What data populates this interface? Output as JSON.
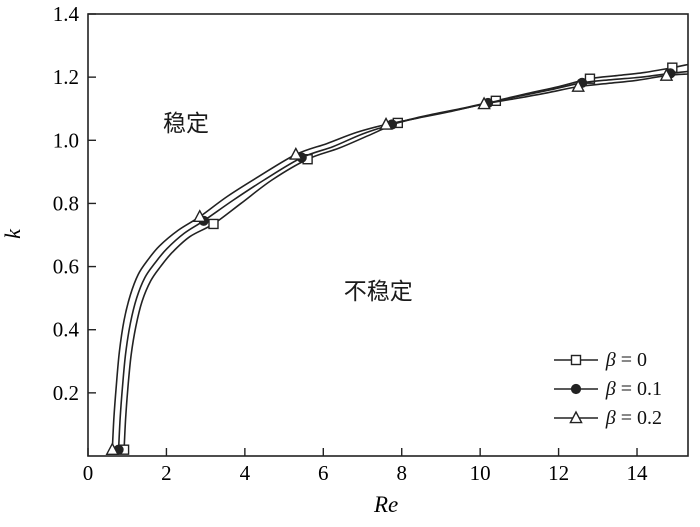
{
  "figure": {
    "background": "#ffffff",
    "line_color": "#222222",
    "text_color": "#000000"
  },
  "chart_data": {
    "type": "line",
    "title": "",
    "xlabel": "Re",
    "ylabel": "k",
    "xlim": [
      0,
      15.3
    ],
    "ylim": [
      0,
      1.4
    ],
    "xticks": [
      0,
      2,
      4,
      6,
      8,
      10,
      12,
      14
    ],
    "yticks": [
      0.2,
      0.4,
      0.6,
      0.8,
      1.0,
      1.2,
      1.4
    ],
    "grid": false,
    "legend_position": "lower right",
    "annotations": [
      {
        "text": "稳定",
        "x": 2.5,
        "y": 1.06
      },
      {
        "text": "不稳定",
        "x": 7.4,
        "y": 0.53
      }
    ],
    "series": [
      {
        "name": "β = 0",
        "marker": "square",
        "marker_filled": false,
        "x": [
          0.92,
          0.96,
          1.02,
          1.1,
          1.22,
          1.38,
          1.6,
          1.85,
          2.15,
          2.6,
          3.2,
          3.9,
          4.7,
          5.6,
          6.4,
          7.15,
          7.9,
          8.7,
          9.5,
          10.4,
          11.2,
          12.0,
          12.8,
          13.5,
          14.2,
          14.9,
          15.3
        ],
        "y": [
          0.02,
          0.12,
          0.22,
          0.32,
          0.41,
          0.49,
          0.555,
          0.6,
          0.645,
          0.695,
          0.735,
          0.8,
          0.875,
          0.94,
          0.975,
          1.015,
          1.055,
          1.08,
          1.1,
          1.125,
          1.148,
          1.17,
          1.195,
          1.205,
          1.215,
          1.23,
          1.24
        ],
        "marker_indices": [
          0,
          10,
          13,
          16,
          19,
          22,
          25
        ]
      },
      {
        "name": "β = 0.1",
        "marker": "circle",
        "marker_filled": true,
        "x": [
          0.78,
          0.82,
          0.88,
          0.96,
          1.08,
          1.24,
          1.45,
          1.7,
          2.0,
          2.45,
          2.95,
          3.7,
          4.5,
          5.45,
          6.25,
          7.0,
          7.75,
          8.55,
          9.35,
          10.2,
          11.0,
          11.8,
          12.6,
          13.35,
          14.1,
          14.85,
          15.3
        ],
        "y": [
          0.02,
          0.12,
          0.22,
          0.325,
          0.42,
          0.5,
          0.565,
          0.61,
          0.655,
          0.705,
          0.745,
          0.81,
          0.875,
          0.945,
          0.98,
          1.02,
          1.05,
          1.075,
          1.095,
          1.118,
          1.14,
          1.16,
          1.182,
          1.192,
          1.2,
          1.212,
          1.218
        ],
        "marker_indices": [
          0,
          10,
          13,
          16,
          19,
          22,
          25
        ]
      },
      {
        "name": "β = 0.2",
        "marker": "triangle",
        "marker_filled": false,
        "x": [
          0.62,
          0.66,
          0.72,
          0.8,
          0.92,
          1.08,
          1.28,
          1.52,
          1.82,
          2.3,
          2.85,
          3.55,
          4.35,
          5.3,
          6.1,
          6.85,
          7.6,
          8.4,
          9.2,
          10.1,
          10.9,
          11.7,
          12.5,
          13.25,
          14.0,
          14.75,
          15.3
        ],
        "y": [
          0.02,
          0.12,
          0.22,
          0.33,
          0.43,
          0.51,
          0.575,
          0.62,
          0.665,
          0.715,
          0.758,
          0.822,
          0.885,
          0.955,
          0.99,
          1.025,
          1.05,
          1.07,
          1.09,
          1.115,
          1.132,
          1.15,
          1.17,
          1.18,
          1.19,
          1.205,
          1.21
        ],
        "marker_indices": [
          0,
          10,
          13,
          16,
          19,
          22,
          25
        ]
      }
    ]
  }
}
